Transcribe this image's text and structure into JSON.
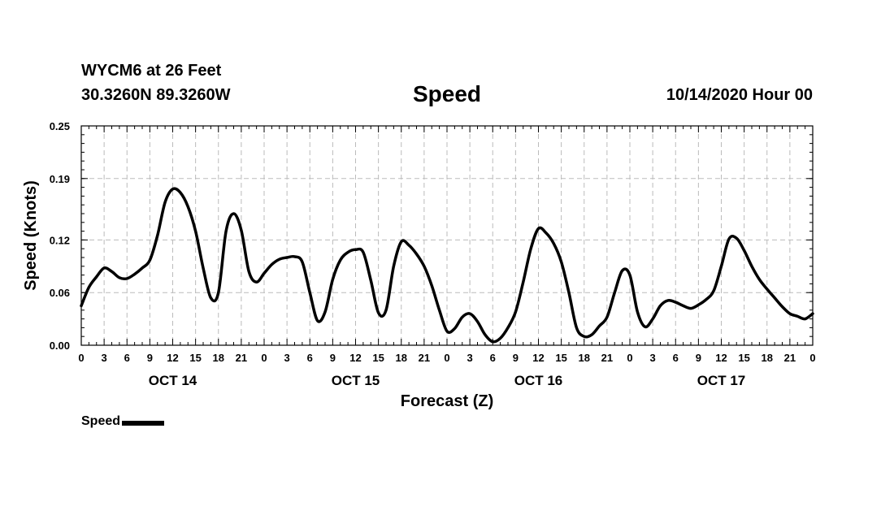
{
  "header": {
    "station": "WYCM6 at 26 Feet",
    "coords": "30.3260N 89.3260W",
    "run_time": "10/14/2020 Hour 00"
  },
  "legend": {
    "label": "Speed"
  },
  "colors": {
    "line": "#000000",
    "grid": "#bbbbbb",
    "background": "#ffffff"
  },
  "chart_data": {
    "type": "line",
    "title": "Speed",
    "xlabel": "Forecast (Z)",
    "ylabel": "Speed (Knots)",
    "xlim": [
      0,
      96
    ],
    "ylim": [
      0,
      0.25
    ],
    "yticks": [
      0.0,
      0.06,
      0.12,
      0.19,
      0.25
    ],
    "ytick_labels": [
      "0.00",
      "0.06",
      "0.12",
      "0.19",
      "0.25"
    ],
    "xtick_hours": [
      0,
      3,
      6,
      9,
      12,
      15,
      18,
      21,
      24,
      27,
      30,
      33,
      36,
      39,
      42,
      45,
      48,
      51,
      54,
      57,
      60,
      63,
      66,
      69,
      72,
      75,
      78,
      81,
      84,
      87,
      90,
      93,
      96
    ],
    "xtick_labels": [
      "0",
      "3",
      "6",
      "9",
      "12",
      "15",
      "18",
      "21",
      "0",
      "3",
      "6",
      "9",
      "12",
      "15",
      "18",
      "21",
      "0",
      "3",
      "6",
      "9",
      "12",
      "15",
      "18",
      "21",
      "0",
      "3",
      "6",
      "9",
      "12",
      "15",
      "18",
      "21",
      "0"
    ],
    "day_labels": [
      {
        "label": "OCT 14",
        "hour": 12
      },
      {
        "label": "OCT 15",
        "hour": 36
      },
      {
        "label": "OCT 16",
        "hour": 60
      },
      {
        "label": "OCT 17",
        "hour": 84
      }
    ],
    "grid": true,
    "legend_position": "bottom-left",
    "series": [
      {
        "name": "Speed",
        "x": [
          0,
          1,
          2,
          3,
          4,
          5,
          6,
          7,
          8,
          9,
          10,
          11,
          12,
          13,
          14,
          15,
          16,
          17,
          18,
          19,
          20,
          21,
          22,
          23,
          24,
          25,
          26,
          27,
          28,
          29,
          30,
          31,
          32,
          33,
          34,
          35,
          36,
          37,
          38,
          39,
          40,
          41,
          42,
          43,
          44,
          45,
          46,
          47,
          48,
          49,
          50,
          51,
          52,
          53,
          54,
          55,
          56,
          57,
          58,
          59,
          60,
          61,
          62,
          63,
          64,
          65,
          66,
          67,
          68,
          69,
          70,
          71,
          72,
          73,
          74,
          75,
          76,
          77,
          78,
          79,
          80,
          81,
          82,
          83,
          84,
          85,
          86,
          87,
          88,
          89,
          90,
          91,
          92,
          93,
          94,
          95,
          96
        ],
        "values": [
          0.045,
          0.066,
          0.078,
          0.088,
          0.084,
          0.077,
          0.076,
          0.081,
          0.088,
          0.097,
          0.125,
          0.163,
          0.178,
          0.174,
          0.158,
          0.13,
          0.088,
          0.054,
          0.06,
          0.13,
          0.15,
          0.131,
          0.084,
          0.072,
          0.082,
          0.092,
          0.098,
          0.1,
          0.101,
          0.095,
          0.06,
          0.028,
          0.038,
          0.075,
          0.097,
          0.106,
          0.109,
          0.106,
          0.074,
          0.037,
          0.04,
          0.09,
          0.118,
          0.114,
          0.104,
          0.09,
          0.068,
          0.04,
          0.016,
          0.019,
          0.032,
          0.036,
          0.027,
          0.012,
          0.004,
          0.008,
          0.02,
          0.038,
          0.072,
          0.11,
          0.133,
          0.128,
          0.116,
          0.095,
          0.06,
          0.02,
          0.01,
          0.012,
          0.022,
          0.032,
          0.06,
          0.085,
          0.08,
          0.038,
          0.021,
          0.03,
          0.045,
          0.051,
          0.049,
          0.045,
          0.042,
          0.046,
          0.052,
          0.062,
          0.09,
          0.121,
          0.122,
          0.108,
          0.09,
          0.075,
          0.064,
          0.054,
          0.044,
          0.036,
          0.033,
          0.03,
          0.036
        ]
      }
    ]
  }
}
